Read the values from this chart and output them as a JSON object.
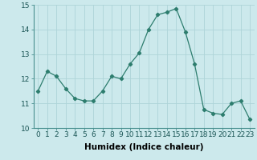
{
  "x": [
    0,
    1,
    2,
    3,
    4,
    5,
    6,
    7,
    8,
    9,
    10,
    11,
    12,
    13,
    14,
    15,
    16,
    17,
    18,
    19,
    20,
    21,
    22,
    23
  ],
  "y": [
    11.5,
    12.3,
    12.1,
    11.6,
    11.2,
    11.1,
    11.1,
    11.5,
    12.1,
    12.0,
    12.6,
    13.05,
    14.0,
    14.6,
    14.7,
    14.85,
    13.9,
    12.6,
    10.75,
    10.6,
    10.55,
    11.0,
    11.1,
    10.35
  ],
  "line_color": "#2d7d6e",
  "marker": "D",
  "marker_size": 2.2,
  "bg_color": "#cce9ec",
  "grid_color": "#aed4d8",
  "xlabel": "Humidex (Indice chaleur)",
  "ylim": [
    10,
    15
  ],
  "xlim_min": -0.5,
  "xlim_max": 23.5,
  "yticks": [
    10,
    11,
    12,
    13,
    14,
    15
  ],
  "xticks": [
    0,
    1,
    2,
    3,
    4,
    5,
    6,
    7,
    8,
    9,
    10,
    11,
    12,
    13,
    14,
    15,
    16,
    17,
    18,
    19,
    20,
    21,
    22,
    23
  ],
  "xlabel_fontsize": 7.5,
  "tick_fontsize": 6.5,
  "spine_color": "#4a9090",
  "linewidth": 0.9
}
